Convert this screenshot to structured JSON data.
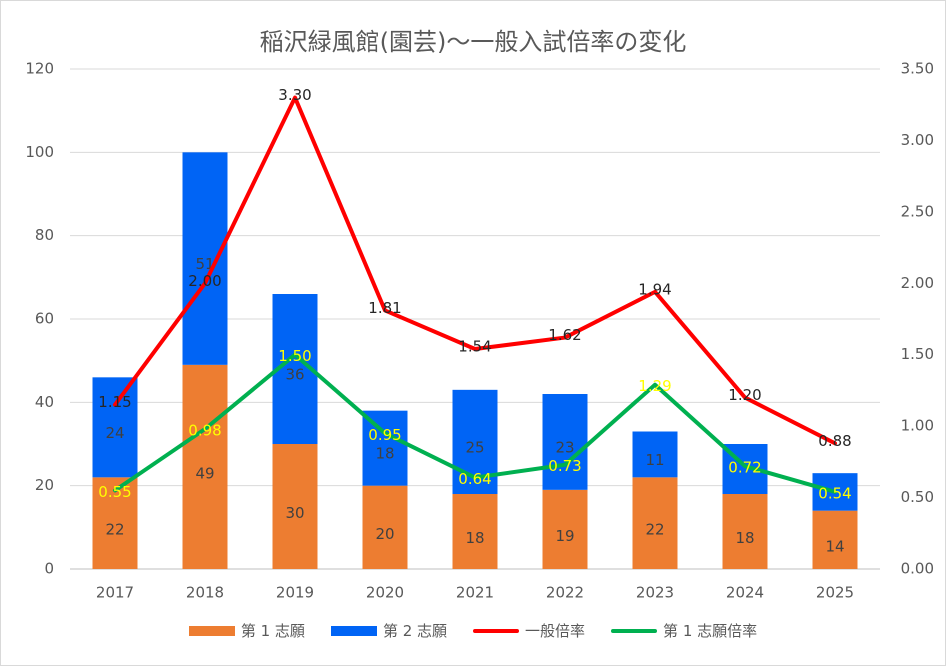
{
  "chart_data": {
    "type": "bar",
    "title": "稲沢緑風館(園芸)～一般入試倍率の変化",
    "categories": [
      "2017",
      "2018",
      "2019",
      "2020",
      "2021",
      "2022",
      "2023",
      "2024",
      "2025"
    ],
    "ylim": [
      0,
      120
    ],
    "y_ticks": [
      "0",
      "20",
      "40",
      "60",
      "80",
      "100",
      "120"
    ],
    "y2lim": [
      0,
      3.5
    ],
    "y2_ticks": [
      "0.00",
      "0.50",
      "1.00",
      "1.50",
      "2.00",
      "2.50",
      "3.00",
      "3.50"
    ],
    "grid": true,
    "legend_position": "bottom",
    "series": [
      {
        "name": "第 1 志願",
        "type": "bar",
        "stack": "main",
        "axis": "left",
        "color": "#ed7d31",
        "values": [
          22,
          49,
          30,
          20,
          18,
          19,
          22,
          18,
          14
        ],
        "labels": [
          "22",
          "49",
          "30",
          "20",
          "18",
          "19",
          "22",
          "18",
          "14"
        ]
      },
      {
        "name": "第 2 志願",
        "type": "bar",
        "stack": "main",
        "axis": "left",
        "color": "#0064f5",
        "values": [
          24,
          51,
          36,
          18,
          25,
          23,
          11,
          12,
          9
        ],
        "labels": [
          "24",
          "51",
          "36",
          "18",
          "25",
          "23",
          "11",
          "",
          ""
        ]
      },
      {
        "name": "一般倍率",
        "type": "line",
        "axis": "right",
        "color": "#ff0000",
        "label_color": "#262626",
        "values": [
          1.15,
          2.0,
          3.3,
          1.81,
          1.54,
          1.62,
          1.94,
          1.2,
          0.88
        ],
        "labels": [
          "1.15",
          "2.00",
          "3.30",
          "1.81",
          "1.54",
          "1.62",
          "1.94",
          "1.20",
          "0.88"
        ]
      },
      {
        "name": "第 1 志願倍率",
        "type": "line",
        "axis": "right",
        "color": "#00b050",
        "label_color": "#ffff00",
        "values": [
          0.55,
          0.98,
          1.5,
          0.95,
          0.64,
          0.73,
          1.29,
          0.72,
          0.54
        ],
        "labels": [
          "0.55",
          "0.98",
          "1.50",
          "0.95",
          "0.64",
          "0.73",
          "1.29",
          "0.72",
          "0.54"
        ]
      }
    ]
  }
}
